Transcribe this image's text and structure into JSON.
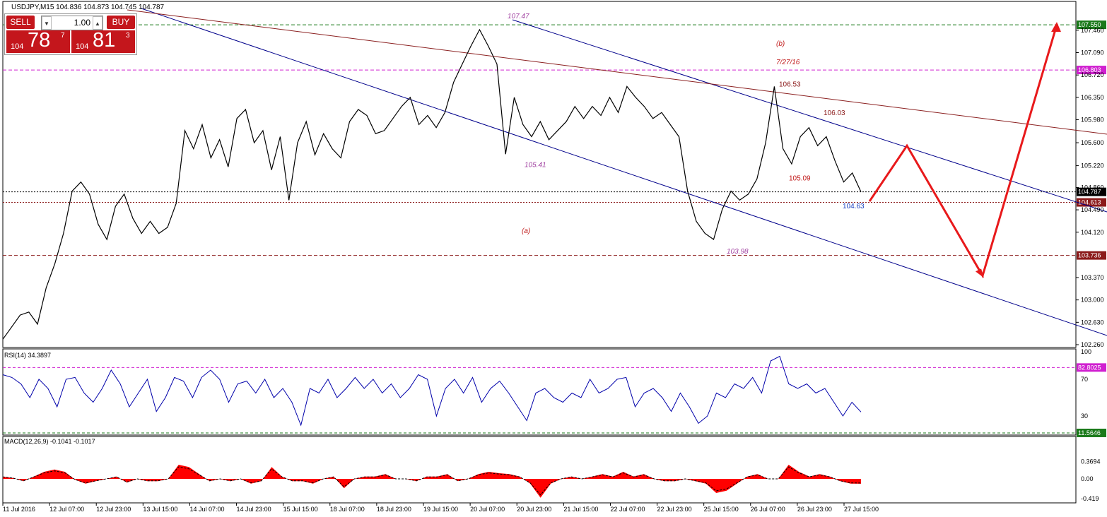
{
  "header": {
    "symbol_line": "USDJPY,M15  104.836 104.873 104.745 104.787"
  },
  "trade_panel": {
    "sell_label": "SELL",
    "buy_label": "BUY",
    "lot": "1.00",
    "sell_price_prefix": "104",
    "sell_price_big": "78",
    "sell_price_sup": "7",
    "buy_price_prefix": "104",
    "buy_price_big": "81",
    "buy_price_sup": "3",
    "color": "#c4161c"
  },
  "chart_data": [
    {
      "type": "line",
      "panel": "price",
      "title": "USDJPY,M15",
      "ylim": [
        102.26,
        107.75
      ],
      "y_ticks": [
        "107.460",
        "107.090",
        "106.720",
        "106.350",
        "105.980",
        "105.600",
        "105.220",
        "104.860",
        "104.490",
        "104.120",
        "103.370",
        "103.000",
        "102.630",
        "102.260"
      ],
      "x_ticks": [
        "11 Jul 2016",
        "12 Jul 07:00",
        "12 Jul 23:00",
        "13 Jul 15:00",
        "14 Jul 07:00",
        "14 Jul 23:00",
        "15 Jul 15:00",
        "18 Jul 07:00",
        "18 Jul 23:00",
        "19 Jul 15:00",
        "20 Jul 07:00",
        "20 Jul 23:00",
        "21 Jul 15:00",
        "22 Jul 07:00",
        "22 Jul 23:00",
        "25 Jul 15:00",
        "26 Jul 07:00",
        "26 Jul 23:00",
        "27 Jul 15:00"
      ],
      "series": [
        {
          "values": [
            102.35,
            102.55,
            102.75,
            102.8,
            102.6,
            103.2,
            103.6,
            104.1,
            104.8,
            104.95,
            104.75,
            104.25,
            104.0,
            104.55,
            104.75,
            104.35,
            104.1,
            104.3,
            104.1,
            104.2,
            104.6,
            105.8,
            105.5,
            105.9,
            105.35,
            105.65,
            105.2,
            106.0,
            106.15,
            105.6,
            105.8,
            105.15,
            105.7,
            104.65,
            105.6,
            105.95,
            105.4,
            105.75,
            105.5,
            105.35,
            105.95,
            106.15,
            106.05,
            105.75,
            105.8,
            106.0,
            106.2,
            106.35,
            105.9,
            106.05,
            105.85,
            106.1,
            106.6,
            106.9,
            107.2,
            107.47,
            107.2,
            106.9,
            105.41,
            106.35,
            105.9,
            105.7,
            105.95,
            105.65,
            105.8,
            105.95,
            106.2,
            106.0,
            106.2,
            106.05,
            106.35,
            106.1,
            106.53,
            106.35,
            106.2,
            106.0,
            106.1,
            105.9,
            105.7,
            104.8,
            104.3,
            104.1,
            104.0,
            104.5,
            104.8,
            104.65,
            104.75,
            105.0,
            105.6,
            106.53,
            105.5,
            105.25,
            105.7,
            105.85,
            105.55,
            105.7,
            105.3,
            104.95,
            105.1,
            104.787
          ]
        },
        {
          "name": "projection",
          "points": [
            [
              104.63,
              "start"
            ],
            [
              105.55,
              "peak"
            ],
            [
              103.4,
              "trough"
            ],
            [
              107.55,
              "target"
            ]
          ]
        }
      ],
      "annotations": [
        {
          "text": "107.47",
          "y": 107.47
        },
        {
          "text": "105.41",
          "y": 105.41
        },
        {
          "text": "103.98",
          "y": 103.98
        },
        {
          "text": "(b)",
          "y": 107.2
        },
        {
          "text": "7/27/16",
          "y": 106.9
        },
        {
          "text": "106.53",
          "y": 106.53
        },
        {
          "text": "106.03",
          "y": 106.03
        },
        {
          "text": "105.09",
          "y": 105.09
        },
        {
          "text": "104.63",
          "y": 104.63
        },
        {
          "text": "(a)",
          "y": 104.2
        }
      ],
      "horizontal_levels": [
        {
          "text": "107.550",
          "value": 107.55,
          "color": "#1a7a1a",
          "style": "dashed"
        },
        {
          "text": "106.803",
          "value": 106.803,
          "color": "#d020d0",
          "style": "dashed"
        },
        {
          "text": "104.787",
          "value": 104.787,
          "color": "#000000",
          "style": "dotted"
        },
        {
          "text": "104.613",
          "value": 104.613,
          "color": "#8b1a1a",
          "style": "dotted"
        },
        {
          "text": "103.736",
          "value": 103.736,
          "color": "#8b1a1a",
          "style": "dashed"
        }
      ],
      "colors": {
        "price": "#000000",
        "channel": "#00008b",
        "trend": "#8b2020",
        "projection": "#e8191b"
      }
    },
    {
      "type": "line",
      "panel": "rsi",
      "title": "RSI(14) 34.3897",
      "ylim": [
        0,
        100
      ],
      "y_ticks": [
        "100",
        "70",
        "30",
        "0"
      ],
      "levels": [
        {
          "text": "82.8025",
          "value": 82.8025
        },
        {
          "text": "11.5646",
          "value": 11.5646
        }
      ],
      "series": [
        {
          "values": [
            75,
            72,
            65,
            50,
            70,
            60,
            40,
            70,
            72,
            55,
            45,
            60,
            80,
            65,
            40,
            55,
            70,
            35,
            50,
            72,
            68,
            50,
            72,
            80,
            70,
            45,
            65,
            68,
            55,
            70,
            50,
            60,
            45,
            20,
            60,
            55,
            70,
            50,
            60,
            72,
            60,
            70,
            55,
            65,
            50,
            60,
            75,
            70,
            30,
            60,
            70,
            55,
            72,
            45,
            60,
            68,
            55,
            40,
            25,
            55,
            60,
            50,
            45,
            55,
            50,
            70,
            55,
            60,
            70,
            72,
            40,
            55,
            60,
            50,
            35,
            55,
            40,
            22,
            30,
            55,
            50,
            65,
            60,
            72,
            55,
            90,
            95,
            65,
            60,
            65,
            55,
            60,
            45,
            30,
            45,
            34.39
          ]
        }
      ],
      "color": "#0000aa"
    },
    {
      "type": "area",
      "panel": "macd",
      "title": "MACD(12,26,9) -0.1041 -0.1017",
      "ylim": [
        -0.45,
        0.45
      ],
      "y_ticks": [
        "0.3694",
        "0.00",
        "-0.419"
      ],
      "series": [
        {
          "values": [
            0.05,
            0.02,
            -0.05,
            0.05,
            0.15,
            0.2,
            0.15,
            -0.02,
            -0.1,
            -0.05,
            0.0,
            0.05,
            -0.08,
            0.0,
            -0.05,
            -0.05,
            0.0,
            0.3,
            0.25,
            0.1,
            -0.05,
            0.0,
            -0.05,
            0.0,
            -0.1,
            -0.05,
            0.25,
            0.05,
            -0.05,
            -0.05,
            -0.1,
            0.0,
            0.05,
            -0.2,
            0.0,
            0.05,
            0.05,
            0.1,
            0.0,
            0.0,
            -0.05,
            0.05,
            0.05,
            0.1,
            -0.05,
            0.0,
            0.1,
            0.15,
            0.12,
            0.1,
            0.05,
            -0.1,
            -0.4,
            -0.1,
            0.0,
            0.05,
            0.0,
            0.05,
            0.1,
            0.05,
            0.15,
            0.05,
            0.1,
            0.0,
            -0.05,
            -0.05,
            0.0,
            -0.05,
            -0.1,
            -0.3,
            -0.25,
            -0.1,
            0.05,
            0.1,
            0.0,
            0.0,
            0.3,
            0.15,
            0.05,
            0.1,
            0.05,
            -0.05,
            -0.1,
            -0.104
          ]
        }
      ],
      "color": "#ff0000"
    }
  ]
}
